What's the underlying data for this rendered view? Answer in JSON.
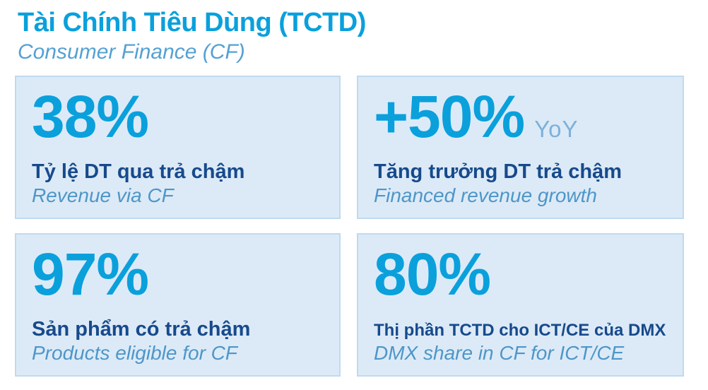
{
  "page": {
    "title": "Tài Chính Tiêu Dùng (TCTD)",
    "subtitle": "Consumer Finance (CF)"
  },
  "colors": {
    "accent_blue": "#0AA0DC",
    "navy": "#174A8C",
    "italic_blue": "#4E96C8",
    "subtitle_blue": "#55A1D1",
    "yoy_blue": "#7DB1DA",
    "card_background": "#DCEAF7",
    "card_border": "#C0DAEF",
    "page_background": "#FFFFFF"
  },
  "cards": [
    {
      "value": "38%",
      "suffix": "",
      "label": "Tỷ lệ DT qua trả chậm",
      "sublabel": "Revenue via CF"
    },
    {
      "value": "+50%",
      "suffix": "YoY",
      "label": "Tăng trưởng DT trả chậm",
      "sublabel": "Financed revenue growth"
    },
    {
      "value": "97%",
      "suffix": "",
      "label": "Sản phẩm có trả chậm",
      "sublabel": "Products eligible for CF"
    },
    {
      "value": "80%",
      "suffix": "",
      "label": "Thị phần TCTD cho ICT/CE của DMX",
      "sublabel": "DMX share in CF for ICT/CE"
    }
  ]
}
